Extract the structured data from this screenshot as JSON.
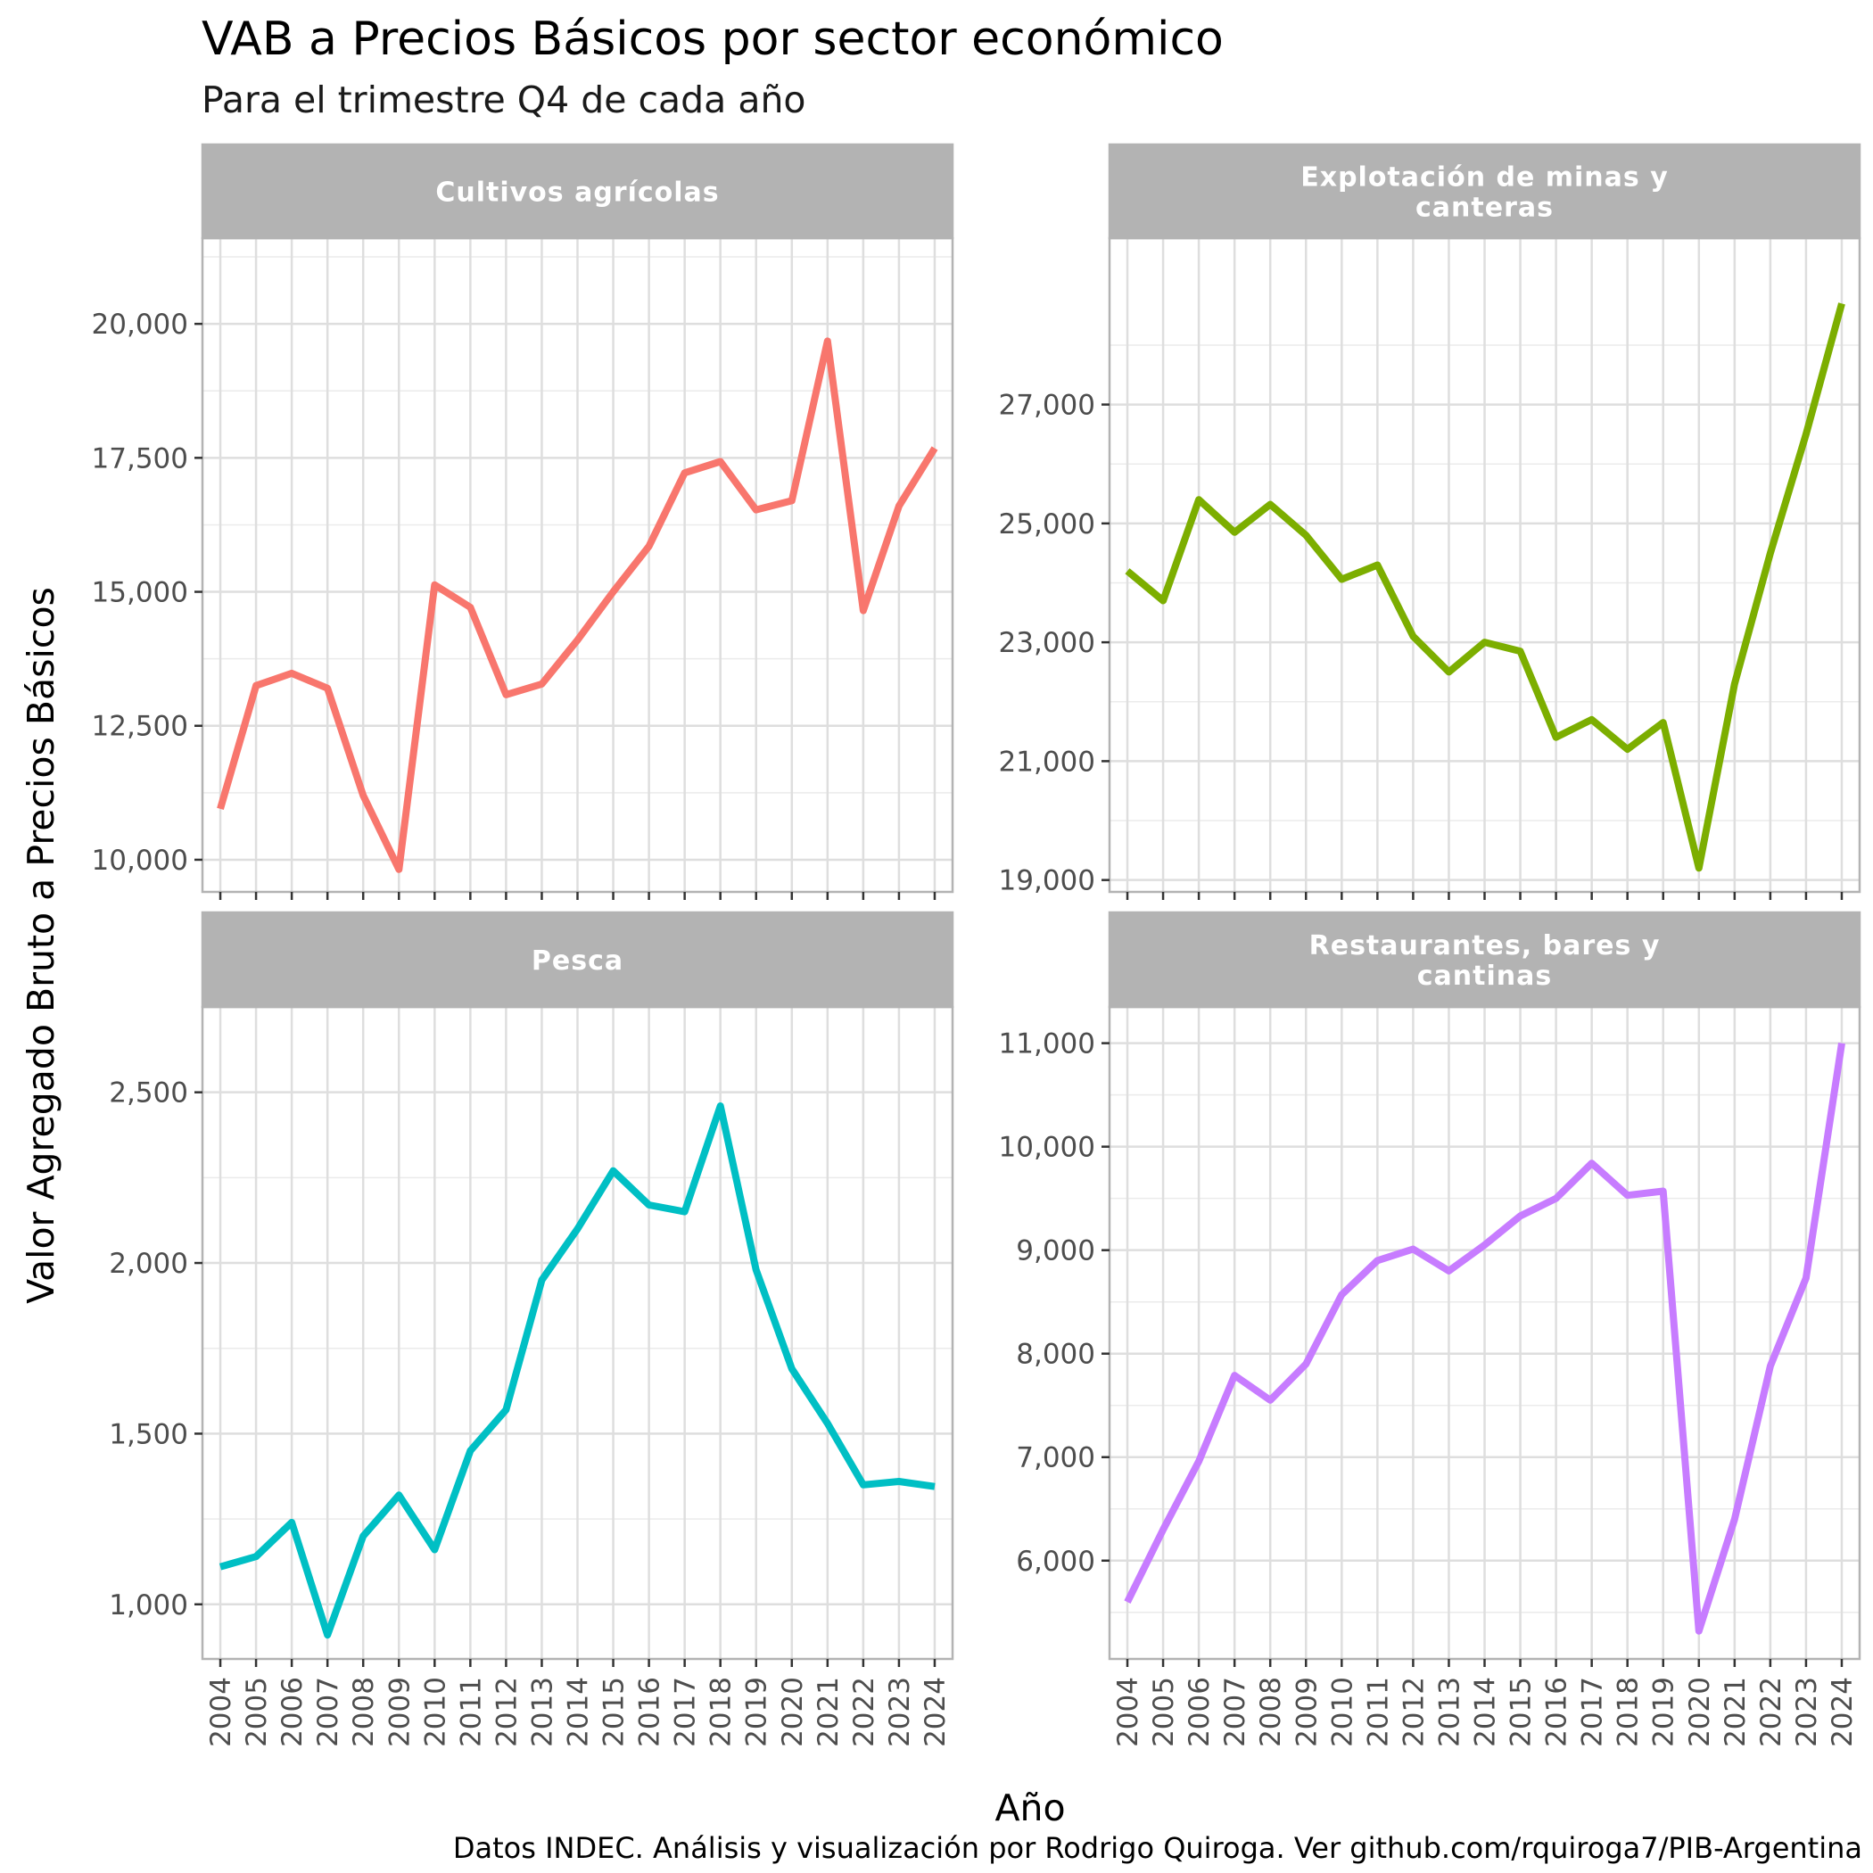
{
  "title": "VAB a Precios Básicos por sector económico",
  "subtitle": "Para el trimestre Q4 de cada año",
  "xlabel": "Año",
  "ylabel": "Valor Agregado Bruto a Precios Básicos",
  "caption": "Datos INDEC. Análisis y visualización por Rodrigo Quiroga. Ver github.com/rquiroga7/PIB-Argentina",
  "chart_data": {
    "type": "line",
    "facets": 4,
    "x": [
      2004,
      2005,
      2006,
      2007,
      2008,
      2009,
      2010,
      2011,
      2012,
      2013,
      2014,
      2015,
      2016,
      2017,
      2018,
      2019,
      2020,
      2021,
      2022,
      2023,
      2024
    ],
    "xlim": [
      2003.5,
      2024.5
    ],
    "grid": true,
    "legend": "none",
    "series": [
      {
        "name": "Cultivos agrícolas",
        "color": "#F8766D",
        "ylim": [
          9400,
          21600
        ],
        "yticks": [
          10000,
          12500,
          15000,
          17500,
          20000
        ],
        "ytick_labels": [
          "10,000",
          "12,500",
          "15,000",
          "17,500",
          "20,000"
        ],
        "values": [
          10950,
          13250,
          13480,
          13200,
          11200,
          9820,
          15130,
          14710,
          13080,
          13280,
          14100,
          15000,
          15850,
          17220,
          17430,
          16530,
          16700,
          19680,
          14650,
          16600,
          17680
        ]
      },
      {
        "name": "Explotación de minas y\ncanteras",
        "color": "#7CAE00",
        "ylim": [
          18800,
          29800
        ],
        "yticks": [
          19000,
          21000,
          23000,
          25000,
          27000
        ],
        "ytick_labels": [
          "19,000",
          "21,000",
          "23,000",
          "25,000",
          "27,000"
        ],
        "values": [
          24200,
          23700,
          25400,
          24850,
          25320,
          24800,
          24060,
          24300,
          23100,
          22500,
          23000,
          22850,
          21400,
          21700,
          21200,
          21650,
          19200,
          22300,
          24500,
          26500,
          28700
        ]
      },
      {
        "name": "Pesca",
        "color": "#00BFC4",
        "ylim": [
          840,
          2750
        ],
        "yticks": [
          1000,
          1500,
          2000,
          2500
        ],
        "ytick_labels": [
          "1,000",
          "1,500",
          "2,000",
          "2,500"
        ],
        "values": [
          1110,
          1140,
          1240,
          910,
          1200,
          1320,
          1160,
          1450,
          1570,
          1950,
          2100,
          2270,
          2170,
          2150,
          2460,
          1980,
          1690,
          1530,
          1350,
          1360,
          1345
        ]
      },
      {
        "name": "Restaurantes, bares y\ncantinas",
        "color": "#C77CFF",
        "ylim": [
          5050,
          11350
        ],
        "yticks": [
          6000,
          7000,
          8000,
          9000,
          10000,
          11000
        ],
        "ytick_labels": [
          "6,000",
          "7,000",
          "8,000",
          "9,000",
          "10,000",
          "11,000"
        ],
        "values": [
          5600,
          6300,
          6960,
          7790,
          7550,
          7900,
          8570,
          8900,
          9010,
          8800,
          9050,
          9330,
          9500,
          9840,
          9530,
          9570,
          5320,
          6400,
          7880,
          8730,
          11000
        ]
      }
    ]
  }
}
